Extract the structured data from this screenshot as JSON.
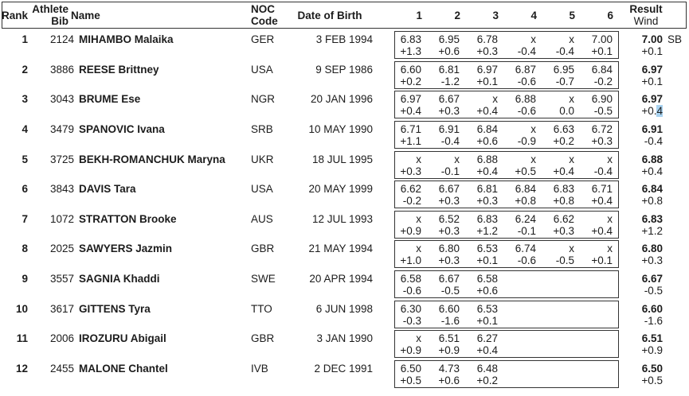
{
  "colors": {
    "text": "#1c1c1c",
    "border": "#333333",
    "highlight": "#a9d3f1"
  },
  "header": {
    "rank": "Rank",
    "bib_line1": "Athlete",
    "bib_line2": "Bib",
    "name": "Name",
    "noc_line1": "NOC",
    "noc_line2": "Code",
    "dob": "Date of Birth",
    "attempts": [
      "1",
      "2",
      "3",
      "4",
      "5",
      "6"
    ],
    "result_line1": "Result",
    "result_line2": "Wind"
  },
  "rows": [
    {
      "rank": "1",
      "bib": "2124",
      "name": "MIHAMBO Malaika",
      "noc": "GER",
      "dob": "3 FEB 1994",
      "attempts": [
        {
          "mark": "6.83",
          "wind": "+1.3"
        },
        {
          "mark": "6.95",
          "wind": "+0.6"
        },
        {
          "mark": "6.78",
          "wind": "+0.3"
        },
        {
          "mark": "x",
          "wind": "-0.4"
        },
        {
          "mark": "x",
          "wind": "-0.4"
        },
        {
          "mark": "7.00",
          "wind": "+0.1"
        }
      ],
      "result": "7.00",
      "wind": "+0.1",
      "note": "SB",
      "wind_highlight_last": false
    },
    {
      "rank": "2",
      "bib": "3886",
      "name": "REESE Brittney",
      "noc": "USA",
      "dob": "9 SEP 1986",
      "attempts": [
        {
          "mark": "6.60",
          "wind": "+0.2"
        },
        {
          "mark": "6.81",
          "wind": "-1.2"
        },
        {
          "mark": "6.97",
          "wind": "+0.1"
        },
        {
          "mark": "6.87",
          "wind": "-0.6"
        },
        {
          "mark": "6.95",
          "wind": "-0.7"
        },
        {
          "mark": "6.84",
          "wind": "-0.2"
        }
      ],
      "result": "6.97",
      "wind": "+0.1",
      "note": "",
      "wind_highlight_last": false
    },
    {
      "rank": "3",
      "bib": "3043",
      "name": "BRUME Ese",
      "noc": "NGR",
      "dob": "20 JAN 1996",
      "attempts": [
        {
          "mark": "6.97",
          "wind": "+0.4"
        },
        {
          "mark": "6.67",
          "wind": "+0.3"
        },
        {
          "mark": "x",
          "wind": "+0.4"
        },
        {
          "mark": "6.88",
          "wind": "-0.6"
        },
        {
          "mark": "x",
          "wind": "0.0"
        },
        {
          "mark": "6.90",
          "wind": "-0.5"
        }
      ],
      "result": "6.97",
      "wind": "+0.4",
      "note": "",
      "wind_highlight_last": true
    },
    {
      "rank": "4",
      "bib": "3479",
      "name": "SPANOVIC Ivana",
      "noc": "SRB",
      "dob": "10 MAY 1990",
      "attempts": [
        {
          "mark": "6.71",
          "wind": "+1.1"
        },
        {
          "mark": "6.91",
          "wind": "-0.4"
        },
        {
          "mark": "6.84",
          "wind": "+0.6"
        },
        {
          "mark": "x",
          "wind": "-0.9"
        },
        {
          "mark": "6.63",
          "wind": "+0.2"
        },
        {
          "mark": "6.72",
          "wind": "+0.3"
        }
      ],
      "result": "6.91",
      "wind": "-0.4",
      "note": "",
      "wind_highlight_last": false
    },
    {
      "rank": "5",
      "bib": "3725",
      "name": "BEKH-ROMANCHUK Maryna",
      "noc": "UKR",
      "dob": "18 JUL 1995",
      "attempts": [
        {
          "mark": "x",
          "wind": "+0.3"
        },
        {
          "mark": "x",
          "wind": "-0.1"
        },
        {
          "mark": "6.88",
          "wind": "+0.4"
        },
        {
          "mark": "x",
          "wind": "+0.5"
        },
        {
          "mark": "x",
          "wind": "+0.4"
        },
        {
          "mark": "x",
          "wind": "-0.4"
        }
      ],
      "result": "6.88",
      "wind": "+0.4",
      "note": "",
      "wind_highlight_last": false
    },
    {
      "rank": "6",
      "bib": "3843",
      "name": "DAVIS Tara",
      "noc": "USA",
      "dob": "20 MAY 1999",
      "attempts": [
        {
          "mark": "6.62",
          "wind": "-0.2"
        },
        {
          "mark": "6.67",
          "wind": "+0.3"
        },
        {
          "mark": "6.81",
          "wind": "+0.3"
        },
        {
          "mark": "6.84",
          "wind": "+0.8"
        },
        {
          "mark": "6.83",
          "wind": "+0.8"
        },
        {
          "mark": "6.71",
          "wind": "+0.4"
        }
      ],
      "result": "6.84",
      "wind": "+0.8",
      "note": "",
      "wind_highlight_last": false
    },
    {
      "rank": "7",
      "bib": "1072",
      "name": "STRATTON Brooke",
      "noc": "AUS",
      "dob": "12 JUL 1993",
      "attempts": [
        {
          "mark": "x",
          "wind": "+0.9"
        },
        {
          "mark": "6.52",
          "wind": "+0.3"
        },
        {
          "mark": "6.83",
          "wind": "+1.2"
        },
        {
          "mark": "6.24",
          "wind": "-0.1"
        },
        {
          "mark": "6.62",
          "wind": "+0.3"
        },
        {
          "mark": "x",
          "wind": "+0.4"
        }
      ],
      "result": "6.83",
      "wind": "+1.2",
      "note": "",
      "wind_highlight_last": false
    },
    {
      "rank": "8",
      "bib": "2025",
      "name": "SAWYERS Jazmin",
      "noc": "GBR",
      "dob": "21 MAY 1994",
      "attempts": [
        {
          "mark": "x",
          "wind": "+1.0"
        },
        {
          "mark": "6.80",
          "wind": "+0.3"
        },
        {
          "mark": "6.53",
          "wind": "+0.1"
        },
        {
          "mark": "6.74",
          "wind": "-0.6"
        },
        {
          "mark": "x",
          "wind": "-0.5"
        },
        {
          "mark": "x",
          "wind": "+0.1"
        }
      ],
      "result": "6.80",
      "wind": "+0.3",
      "note": "",
      "wind_highlight_last": false
    },
    {
      "rank": "9",
      "bib": "3557",
      "name": "SAGNIA Khaddi",
      "noc": "SWE",
      "dob": "20 APR 1994",
      "attempts": [
        {
          "mark": "6.58",
          "wind": "-0.6"
        },
        {
          "mark": "6.67",
          "wind": "-0.5"
        },
        {
          "mark": "6.58",
          "wind": "+0.6"
        }
      ],
      "result": "6.67",
      "wind": "-0.5",
      "note": "",
      "wind_highlight_last": false
    },
    {
      "rank": "10",
      "bib": "3617",
      "name": "GITTENS Tyra",
      "noc": "TTO",
      "dob": "6 JUN 1998",
      "attempts": [
        {
          "mark": "6.30",
          "wind": "-0.3"
        },
        {
          "mark": "6.60",
          "wind": "-1.6"
        },
        {
          "mark": "6.53",
          "wind": "+0.1"
        }
      ],
      "result": "6.60",
      "wind": "-1.6",
      "note": "",
      "wind_highlight_last": false
    },
    {
      "rank": "11",
      "bib": "2006",
      "name": "IROZURU Abigail",
      "noc": "GBR",
      "dob": "3 JAN 1990",
      "attempts": [
        {
          "mark": "x",
          "wind": "+0.9"
        },
        {
          "mark": "6.51",
          "wind": "+0.9"
        },
        {
          "mark": "6.27",
          "wind": "+0.4"
        }
      ],
      "result": "6.51",
      "wind": "+0.9",
      "note": "",
      "wind_highlight_last": false
    },
    {
      "rank": "12",
      "bib": "2455",
      "name": "MALONE Chantel",
      "noc": "IVB",
      "dob": "2 DEC 1991",
      "attempts": [
        {
          "mark": "6.50",
          "wind": "+0.5"
        },
        {
          "mark": "4.73",
          "wind": "+0.6"
        },
        {
          "mark": "6.48",
          "wind": "+0.2"
        }
      ],
      "result": "6.50",
      "wind": "+0.5",
      "note": "",
      "wind_highlight_last": false
    }
  ]
}
